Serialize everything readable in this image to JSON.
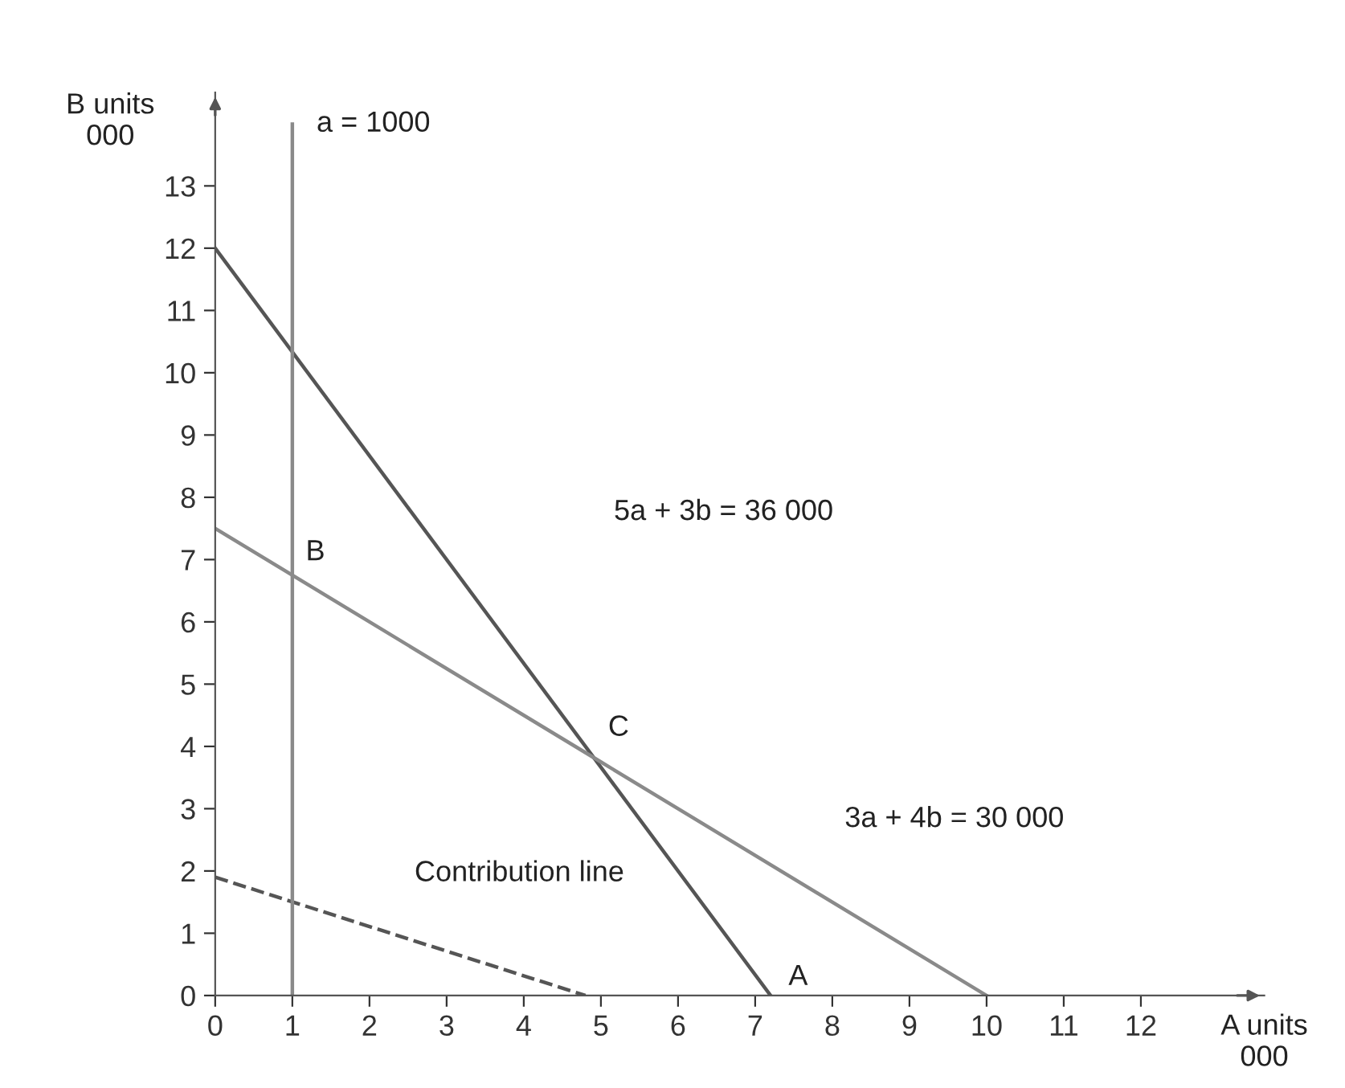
{
  "chart_data": {
    "type": "line",
    "xlabel": "A units\n000",
    "ylabel": "B units\n000",
    "xlim": [
      0,
      13.6
    ],
    "ylim": [
      0,
      14.5
    ],
    "xticks": [
      0,
      1,
      2,
      3,
      4,
      5,
      6,
      7,
      8,
      9,
      10,
      11,
      12
    ],
    "yticks": [
      0,
      1,
      2,
      3,
      4,
      5,
      6,
      7,
      8,
      9,
      10,
      11,
      12,
      13
    ],
    "series": [
      {
        "color": "#555555",
        "x": [
          0,
          7.2
        ],
        "values": [
          12,
          0
        ],
        "line_style": "solid"
      },
      {
        "color": "#8a8a8a",
        "x": [
          0,
          5,
          10
        ],
        "values": [
          7.5,
          3.75,
          0
        ],
        "line_style": "solid"
      },
      {
        "color": "#555555",
        "x": [
          0,
          4.8
        ],
        "values": [
          1.9,
          0
        ],
        "line_style": "dashed"
      }
    ],
    "ref_lines": [
      {
        "axis": "x",
        "value": 1,
        "label": "a = 1000",
        "color": "#8a8a8a"
      }
    ],
    "annotations": [
      "5a + 3b = 36 000",
      "3a + 4b = 30 000",
      "Contribution line",
      {
        "text": "A",
        "x": 7.2,
        "y": 0
      },
      {
        "text": "B",
        "x": 1,
        "y": 6.75
      },
      {
        "text": "C",
        "x": 4.92,
        "y": 3.86
      }
    ],
    "grid": false,
    "legend": false,
    "marker": "none"
  }
}
